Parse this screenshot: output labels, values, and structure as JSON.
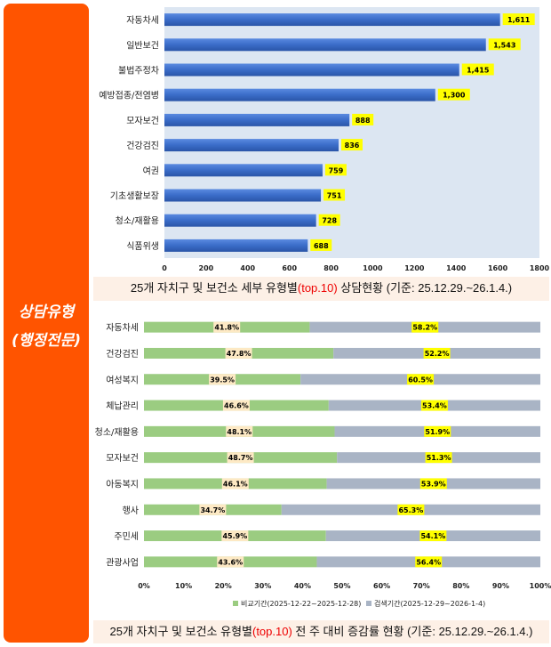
{
  "sidebar": {
    "line1": "상담유형",
    "line2": "(행정전문)"
  },
  "chart_data": [
    {
      "type": "bar",
      "orientation": "horizontal",
      "categories": [
        "자동차세",
        "일반보건",
        "불법주정차",
        "예방접종/전염병",
        "모자보건",
        "건강검진",
        "여권",
        "기초생활보장",
        "청소/재활용",
        "식품위생"
      ],
      "values": [
        1611,
        1543,
        1415,
        1300,
        888,
        836,
        759,
        751,
        728,
        688
      ],
      "value_labels": [
        "1,611",
        "1,543",
        "1,415",
        "1,300",
        "888",
        "836",
        "759",
        "751",
        "728",
        "688"
      ],
      "xlim": [
        0,
        1800
      ],
      "xticks": [
        "0",
        "200",
        "400",
        "600",
        "800",
        "1000",
        "1200",
        "1400",
        "1600",
        "1800"
      ],
      "title_parts": [
        "25개 자치구 및 보건소 세부 유형별",
        "(top.10)",
        " 상담현황  (기준: 25.12.29.~26.1.4.)"
      ],
      "colors": {
        "bar": "#3d6fc9",
        "plot_bg": "#dce6f2",
        "label_bg": "#ffff00"
      }
    },
    {
      "type": "bar",
      "orientation": "horizontal",
      "stacked": "percent",
      "categories": [
        "자동차세",
        "건강검진",
        "여성복지",
        "체납관리",
        "청소/재활용",
        "모자보건",
        "아동복지",
        "행사",
        "주민세",
        "관광사업"
      ],
      "series": [
        {
          "name": "비교기간(2025-12-22~2025-12-28)",
          "values": [
            41.8,
            47.8,
            39.5,
            46.6,
            48.1,
            48.7,
            46.1,
            34.7,
            45.9,
            43.6
          ],
          "color": "#9bcc81"
        },
        {
          "name": "검색기간(2025-12-29~2026-1-4)",
          "values": [
            58.2,
            52.2,
            60.5,
            53.4,
            51.9,
            51.3,
            53.9,
            65.3,
            54.1,
            56.4
          ],
          "color": "#a9b4c5"
        }
      ],
      "xlim": [
        0,
        100
      ],
      "xticks": [
        "0%",
        "10%",
        "20%",
        "30%",
        "40%",
        "50%",
        "60%",
        "70%",
        "80%",
        "90%",
        "100%"
      ],
      "legend": "bottom",
      "title_parts": [
        "25개 자치구 및 보건소 유형별",
        "(top.10)",
        " 전 주 대비 증감률 현황 (기준: 25.12.29.~26.1.4.)"
      ]
    }
  ]
}
